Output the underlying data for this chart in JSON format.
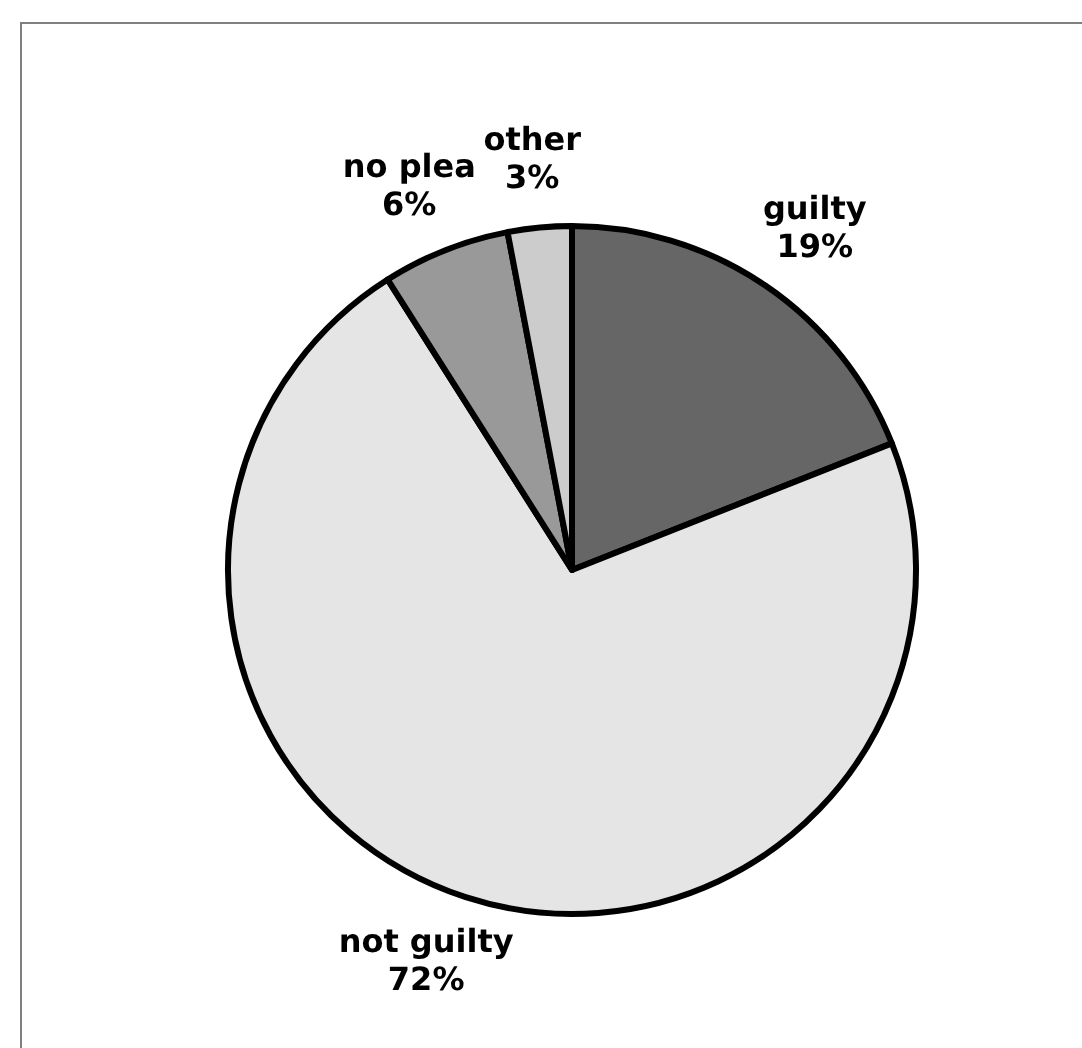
{
  "chart_data": {
    "type": "pie",
    "categories": [
      "guilty",
      "not guilty",
      "no plea",
      "other"
    ],
    "values": [
      19,
      72,
      6,
      3
    ],
    "colors": [
      "#666666",
      "#e5e5e5",
      "#999999",
      "#cccccc"
    ],
    "value_labels": [
      "19%",
      "72%",
      "6%",
      "3%"
    ]
  }
}
